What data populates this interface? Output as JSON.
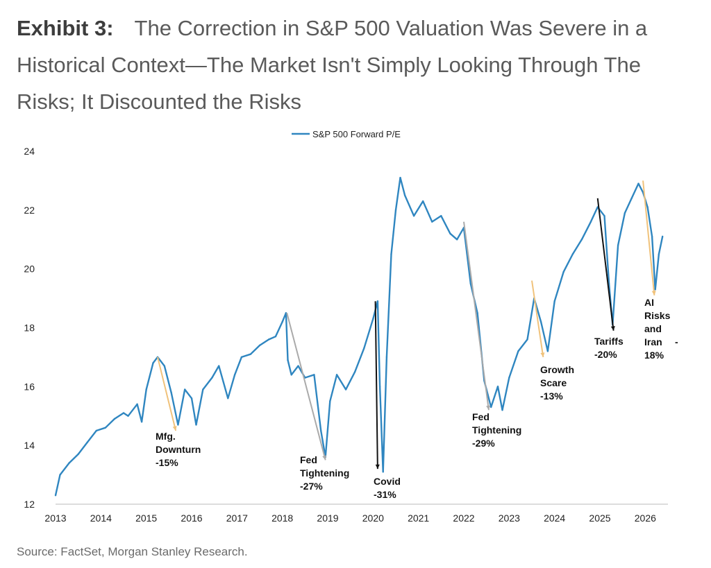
{
  "header": {
    "label": "Exhibit 3:",
    "title": "The Correction in S&P 500 Valuation Was Severe in a Historical Context—The Market Isn't Simply Looking Through The Risks; It Discounted the Risks"
  },
  "footer": {
    "source": "Source: FactSet, Morgan Stanley Research."
  },
  "chart_data": {
    "type": "line",
    "series": [
      {
        "name": "S&P 500 Forward P/E",
        "color": "#2f86c0",
        "points": [
          [
            2013.0,
            12.3
          ],
          [
            2013.1,
            13.0
          ],
          [
            2013.3,
            13.4
          ],
          [
            2013.5,
            13.7
          ],
          [
            2013.7,
            14.1
          ],
          [
            2013.9,
            14.5
          ],
          [
            2014.1,
            14.6
          ],
          [
            2014.3,
            14.9
          ],
          [
            2014.5,
            15.1
          ],
          [
            2014.6,
            15.0
          ],
          [
            2014.8,
            15.4
          ],
          [
            2014.9,
            14.8
          ],
          [
            2015.0,
            15.9
          ],
          [
            2015.15,
            16.8
          ],
          [
            2015.25,
            17.0
          ],
          [
            2015.4,
            16.7
          ],
          [
            2015.55,
            15.8
          ],
          [
            2015.7,
            14.7
          ],
          [
            2015.85,
            15.9
          ],
          [
            2016.0,
            15.6
          ],
          [
            2016.1,
            14.7
          ],
          [
            2016.25,
            15.9
          ],
          [
            2016.45,
            16.3
          ],
          [
            2016.6,
            16.7
          ],
          [
            2016.8,
            15.6
          ],
          [
            2016.95,
            16.4
          ],
          [
            2017.1,
            17.0
          ],
          [
            2017.3,
            17.1
          ],
          [
            2017.5,
            17.4
          ],
          [
            2017.7,
            17.6
          ],
          [
            2017.85,
            17.7
          ],
          [
            2018.0,
            18.2
          ],
          [
            2018.08,
            18.5
          ],
          [
            2018.12,
            16.9
          ],
          [
            2018.2,
            16.4
          ],
          [
            2018.35,
            16.7
          ],
          [
            2018.5,
            16.3
          ],
          [
            2018.7,
            16.4
          ],
          [
            2018.85,
            14.5
          ],
          [
            2018.95,
            13.6
          ],
          [
            2019.05,
            15.5
          ],
          [
            2019.2,
            16.4
          ],
          [
            2019.4,
            15.9
          ],
          [
            2019.6,
            16.5
          ],
          [
            2019.8,
            17.3
          ],
          [
            2020.0,
            18.3
          ],
          [
            2020.1,
            18.9
          ],
          [
            2020.15,
            16.0
          ],
          [
            2020.22,
            13.1
          ],
          [
            2020.3,
            17.0
          ],
          [
            2020.4,
            20.5
          ],
          [
            2020.5,
            22.0
          ],
          [
            2020.6,
            23.1
          ],
          [
            2020.7,
            22.5
          ],
          [
            2020.9,
            21.8
          ],
          [
            2021.1,
            22.3
          ],
          [
            2021.3,
            21.6
          ],
          [
            2021.5,
            21.8
          ],
          [
            2021.7,
            21.2
          ],
          [
            2021.85,
            21.0
          ],
          [
            2022.0,
            21.4
          ],
          [
            2022.15,
            19.5
          ],
          [
            2022.3,
            18.5
          ],
          [
            2022.45,
            16.2
          ],
          [
            2022.6,
            15.3
          ],
          [
            2022.75,
            16.0
          ],
          [
            2022.85,
            15.2
          ],
          [
            2023.0,
            16.3
          ],
          [
            2023.2,
            17.2
          ],
          [
            2023.4,
            17.6
          ],
          [
            2023.55,
            19.0
          ],
          [
            2023.7,
            18.2
          ],
          [
            2023.85,
            17.2
          ],
          [
            2024.0,
            18.9
          ],
          [
            2024.2,
            19.9
          ],
          [
            2024.4,
            20.5
          ],
          [
            2024.6,
            21.0
          ],
          [
            2024.8,
            21.6
          ],
          [
            2024.95,
            22.1
          ],
          [
            2025.1,
            21.8
          ],
          [
            2025.2,
            19.5
          ],
          [
            2025.28,
            18.1
          ],
          [
            2025.4,
            20.8
          ],
          [
            2025.55,
            21.9
          ],
          [
            2025.7,
            22.4
          ],
          [
            2025.85,
            22.9
          ],
          [
            2025.95,
            22.6
          ],
          [
            2026.05,
            22.1
          ],
          [
            2026.15,
            21.1
          ],
          [
            2026.22,
            19.3
          ],
          [
            2026.3,
            20.5
          ],
          [
            2026.38,
            21.1
          ]
        ]
      }
    ],
    "xlim": [
      2013,
      2026.5
    ],
    "ylim": [
      12,
      24
    ],
    "x_ticks": [
      "2013",
      "2014",
      "2015",
      "2016",
      "2017",
      "2018",
      "2019",
      "2020",
      "2021",
      "2022",
      "2023",
      "2024",
      "2025",
      "2026"
    ],
    "y_ticks": [
      "12",
      "14",
      "16",
      "18",
      "20",
      "22",
      "24"
    ],
    "legend": {
      "label": "S&P 500 Forward P/E",
      "placement": "top-center"
    },
    "grid": false,
    "annotations": [
      {
        "lines": [
          "Mfg.",
          "Downturn",
          "-15%"
        ],
        "arrow_from": [
          2015.25,
          17.0
        ],
        "arrow_to": [
          2015.65,
          14.5
        ],
        "arrow_color": "#f0c27b"
      },
      {
        "lines": [
          "Fed",
          "Tightening",
          "-27%"
        ],
        "arrow_from": [
          2018.1,
          18.5
        ],
        "arrow_to": [
          2018.95,
          13.5
        ],
        "arrow_color": "#aaaaaa"
      },
      {
        "lines": [
          "Covid",
          "-31%"
        ],
        "arrow_from": [
          2020.05,
          18.9
        ],
        "arrow_to": [
          2020.1,
          13.2
        ],
        "arrow_color": "#111111"
      },
      {
        "lines": [
          "Fed",
          "Tightening",
          "-29%"
        ],
        "arrow_from": [
          2022.0,
          21.6
        ],
        "arrow_to": [
          2022.55,
          15.2
        ],
        "arrow_color": "#aaaaaa"
      },
      {
        "lines": [
          "Growth",
          "Scare",
          "-13%"
        ],
        "arrow_from": [
          2023.5,
          19.6
        ],
        "arrow_to": [
          2023.75,
          17.0
        ],
        "arrow_color": "#f0c27b"
      },
      {
        "lines": [
          "Tariffs",
          "-20%"
        ],
        "arrow_from": [
          2024.95,
          22.4
        ],
        "arrow_to": [
          2025.3,
          17.9
        ],
        "arrow_color": "#111111"
      },
      {
        "lines": [
          "AI",
          "Risks",
          "and",
          "Iran",
          "18%"
        ],
        "extra": "-",
        "arrow_from": [
          2025.95,
          23.0
        ],
        "arrow_to": [
          2026.2,
          19.1
        ],
        "arrow_color": "#f0c27b"
      }
    ]
  }
}
